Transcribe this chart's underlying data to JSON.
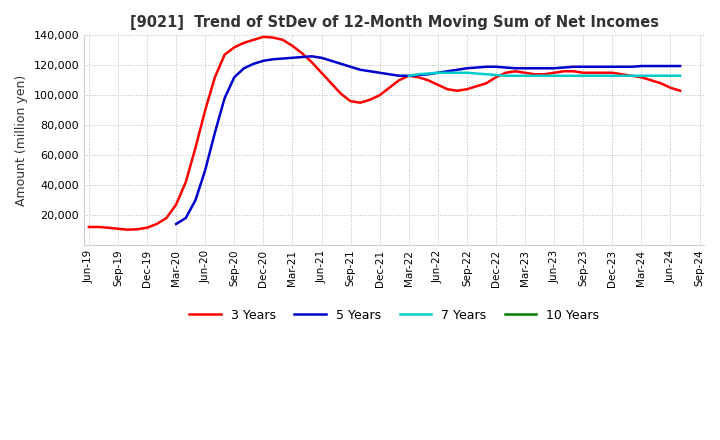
{
  "title": "[9021]  Trend of StDev of 12-Month Moving Sum of Net Incomes",
  "ylabel": "Amount (million yen)",
  "ylim": [
    0,
    140000
  ],
  "yticks": [
    20000,
    40000,
    60000,
    80000,
    100000,
    120000,
    140000
  ],
  "background_color": "#ffffff",
  "grid_color": "#bbbbbb",
  "lines": {
    "3 Years": {
      "color": "#ff0000",
      "data_x": [
        0,
        1,
        2,
        3,
        4,
        5,
        6,
        7,
        8,
        9,
        10,
        11,
        12,
        13,
        14,
        15,
        16,
        17,
        18,
        19,
        20,
        21,
        22,
        23,
        24,
        25,
        26,
        27,
        28,
        29,
        30,
        31,
        32,
        33,
        34,
        35,
        36,
        37,
        38,
        39,
        40,
        41,
        42,
        43,
        44,
        45,
        46,
        47,
        48,
        49,
        50,
        51,
        52,
        53,
        54,
        55,
        56,
        57,
        58,
        59,
        60,
        61
      ],
      "data_y": [
        12000,
        12000,
        11500,
        10800,
        10200,
        10500,
        11500,
        14000,
        18000,
        27000,
        42000,
        65000,
        90000,
        112000,
        127000,
        132000,
        135000,
        137000,
        139000,
        138500,
        137000,
        133000,
        128000,
        122000,
        115000,
        108000,
        101000,
        96000,
        95000,
        97000,
        100000,
        105000,
        110000,
        113000,
        112000,
        110000,
        107000,
        104000,
        103000,
        104000,
        106000,
        108000,
        112000,
        115000,
        116000,
        115000,
        114000,
        114000,
        115000,
        116000,
        116000,
        115000,
        115000,
        115000,
        115000,
        114000,
        113000,
        112000,
        110000,
        108000,
        105000,
        103000
      ]
    },
    "5 Years": {
      "color": "#0000cc",
      "data_x": [
        9,
        10,
        11,
        12,
        13,
        14,
        15,
        16,
        17,
        18,
        19,
        20,
        21,
        22,
        23,
        24,
        25,
        26,
        27,
        28,
        29,
        30,
        31,
        32,
        33,
        34,
        35,
        36,
        37,
        38,
        39,
        40,
        41,
        42,
        43,
        44,
        45,
        46,
        47,
        48,
        49,
        50,
        51,
        52,
        53,
        54,
        55,
        56,
        57,
        58,
        59,
        60,
        61
      ],
      "data_y": [
        14000,
        18000,
        30000,
        50000,
        75000,
        98000,
        112000,
        118000,
        121000,
        123000,
        124000,
        124500,
        125000,
        125500,
        126000,
        125000,
        123000,
        121000,
        119000,
        117000,
        116000,
        115000,
        114000,
        113000,
        113000,
        113500,
        114000,
        115000,
        116000,
        117000,
        118000,
        118500,
        119000,
        119000,
        118500,
        118000,
        118000,
        118000,
        118000,
        118000,
        118500,
        119000,
        119000,
        119000,
        119000,
        119000,
        119000,
        119000,
        119500,
        119500,
        119500,
        119500,
        119500
      ]
    },
    "7 Years": {
      "color": "#00cccc",
      "data_x": [
        33,
        34,
        35,
        36,
        37,
        38,
        39,
        40,
        41,
        42,
        43,
        44,
        45,
        46,
        47,
        48,
        49,
        50,
        51,
        52,
        53,
        54,
        55,
        56,
        57,
        58,
        59,
        60,
        61
      ],
      "data_y": [
        113000,
        114000,
        114500,
        115000,
        115000,
        115000,
        115000,
        114500,
        114000,
        113500,
        113000,
        113000,
        113000,
        113000,
        113000,
        113000,
        113000,
        113000,
        113000,
        113000,
        113000,
        113000,
        113000,
        113000,
        113000,
        113000,
        113000,
        113000,
        113000
      ]
    },
    "10 Years": {
      "color": "#008000",
      "data_x": [],
      "data_y": []
    }
  },
  "xtick_labels": [
    "Jun-19",
    "Sep-19",
    "Dec-19",
    "Mar-20",
    "Jun-20",
    "Sep-20",
    "Dec-20",
    "Mar-21",
    "Jun-21",
    "Sep-21",
    "Dec-21",
    "Mar-22",
    "Jun-22",
    "Sep-22",
    "Dec-22",
    "Mar-23",
    "Jun-23",
    "Sep-23",
    "Dec-23",
    "Mar-24",
    "Jun-24",
    "Sep-24"
  ],
  "xtick_positions": [
    0,
    3,
    6,
    9,
    12,
    15,
    18,
    21,
    24,
    27,
    30,
    33,
    36,
    39,
    42,
    45,
    48,
    51,
    54,
    57,
    60,
    63
  ],
  "legend_labels": [
    "3 Years",
    "5 Years",
    "7 Years",
    "10 Years"
  ],
  "legend_colors": [
    "#ff0000",
    "#0000cc",
    "#00cccc",
    "#008000"
  ],
  "xlim": [
    -0.5,
    63.5
  ]
}
